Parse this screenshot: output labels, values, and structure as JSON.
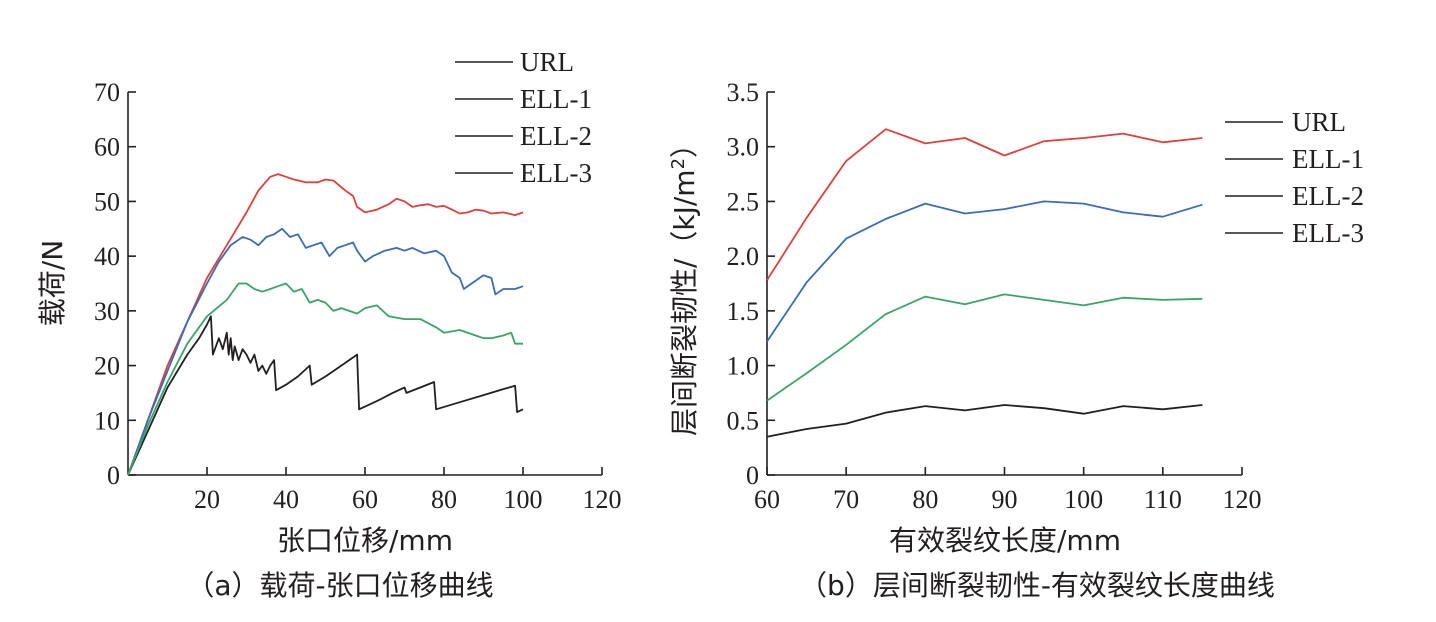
{
  "chart_data": [
    {
      "type": "line",
      "caption": "（a）载荷-张口位移曲线",
      "xlabel": "张口位移/mm",
      "ylabel": "载荷/N",
      "xlim": [
        0,
        120
      ],
      "ylim": [
        0,
        70
      ],
      "xticks": [
        20,
        40,
        60,
        80,
        100,
        120
      ],
      "xtick_labels": [
        "20",
        "40",
        "60",
        "80",
        "100",
        "120"
      ],
      "yticks": [
        0,
        10,
        20,
        30,
        40,
        50,
        60,
        70
      ],
      "ytick_labels": [
        "0",
        "10",
        "20",
        "30",
        "40",
        "50",
        "60",
        "70"
      ],
      "legend_position": "top-right",
      "series": [
        {
          "name": "URL",
          "color": "#231f20",
          "x": [
            0,
            5,
            10,
            15,
            18,
            20,
            21,
            21.5,
            23,
            24,
            25,
            25.5,
            26,
            26.5,
            27,
            28,
            29,
            30,
            31,
            32,
            33,
            34,
            35,
            36,
            37,
            37.5,
            40,
            43,
            46,
            46.5,
            50,
            54,
            58,
            58.5,
            63,
            67,
            70,
            70.5,
            74,
            77.5,
            78,
            84,
            90,
            95,
            98,
            98.5,
            100
          ],
          "y": [
            0,
            8,
            16,
            22,
            25,
            27.5,
            29,
            22,
            25,
            23,
            26,
            22,
            25,
            21,
            23.5,
            21,
            23,
            22,
            20.5,
            22,
            19,
            20,
            18.5,
            20,
            21,
            15.5,
            16.5,
            18,
            20,
            16.5,
            18,
            20,
            22,
            12,
            13.5,
            15,
            16,
            15,
            16,
            17,
            12,
            13.3,
            14.6,
            15.7,
            16.3,
            11.5,
            12
          ]
        },
        {
          "name": "ELL-1",
          "color": "#d9423e",
          "x": [
            0,
            5,
            10,
            15,
            20,
            25,
            30,
            33,
            36,
            38,
            40,
            42,
            45,
            48,
            50,
            52,
            55,
            57,
            58,
            60,
            63,
            66,
            68,
            70,
            72,
            74,
            76,
            78,
            80,
            82,
            84,
            86,
            88,
            90,
            92,
            95,
            98,
            100
          ],
          "y": [
            0,
            10,
            20,
            28,
            36,
            42,
            48,
            52,
            54.5,
            55,
            54.5,
            54,
            53.5,
            53.5,
            54,
            53.8,
            52,
            51,
            49,
            48,
            48.5,
            49.5,
            50.5,
            50,
            49,
            49.3,
            49.5,
            49,
            49.2,
            48.5,
            47.8,
            48,
            48.5,
            48.3,
            47.8,
            48,
            47.5,
            48
          ]
        },
        {
          "name": "ELL-2",
          "color": "#3a6db3",
          "x": [
            0,
            5,
            10,
            15,
            20,
            23,
            26,
            29,
            31,
            33,
            35,
            37,
            39,
            41,
            43,
            45,
            47,
            49,
            51,
            53,
            55,
            57,
            58,
            60,
            62,
            65,
            68,
            70,
            72,
            75,
            78,
            80,
            82,
            84,
            85,
            87,
            90,
            92,
            93,
            95,
            98,
            100
          ],
          "y": [
            0,
            10,
            19,
            28,
            35,
            39,
            42,
            43.5,
            43,
            42,
            43.5,
            44,
            45,
            43.5,
            44,
            41.5,
            42,
            42.5,
            40,
            41.5,
            42,
            42.5,
            41,
            39,
            40,
            41,
            41.5,
            41,
            41.5,
            40.5,
            41,
            40,
            37,
            36,
            34,
            35,
            36.5,
            36,
            33,
            34,
            34,
            34.5
          ]
        },
        {
          "name": "ELL-3",
          "color": "#3aa466",
          "x": [
            0,
            5,
            10,
            15,
            20,
            25,
            28,
            30,
            32,
            34,
            36,
            38,
            40,
            42,
            44,
            46,
            48,
            50,
            52,
            54,
            56,
            58,
            60,
            63,
            66,
            70,
            74,
            78,
            80,
            84,
            88,
            90,
            92,
            95,
            97,
            98,
            100
          ],
          "y": [
            0,
            9,
            17,
            24,
            29,
            32,
            35,
            35,
            34,
            33.5,
            34,
            34.5,
            35,
            33.5,
            34,
            31.5,
            32,
            31.5,
            30,
            30.5,
            30,
            29.5,
            30.5,
            31,
            29,
            28.5,
            28.5,
            27,
            26,
            26.5,
            25.5,
            25,
            25,
            25.5,
            26,
            24,
            24
          ]
        }
      ]
    },
    {
      "type": "line",
      "caption": "（b）层间断裂韧性-有效裂纹长度曲线",
      "xlabel": "有效裂纹长度/mm",
      "ylabel_main": "层间断裂韧性/（kJ/m",
      "ylabel_sup": "2",
      "ylabel_end": "）",
      "xlim": [
        60,
        120
      ],
      "ylim": [
        0,
        3.5
      ],
      "xticks": [
        60,
        70,
        80,
        90,
        100,
        110,
        120
      ],
      "xtick_labels": [
        "60",
        "70",
        "80",
        "90",
        "100",
        "110",
        "120"
      ],
      "yticks": [
        0,
        0.5,
        1.0,
        1.5,
        2.0,
        2.5,
        3.0,
        3.5
      ],
      "ytick_labels": [
        "0",
        "0.5",
        "1.0",
        "1.5",
        "2.0",
        "2.5",
        "3.0",
        "3.5"
      ],
      "legend_position": "right",
      "series": [
        {
          "name": "URL",
          "color": "#231f20",
          "x": [
            60,
            65,
            70,
            75,
            80,
            85,
            90,
            95,
            100,
            105,
            110,
            115
          ],
          "y": [
            0.35,
            0.42,
            0.47,
            0.57,
            0.63,
            0.59,
            0.64,
            0.61,
            0.56,
            0.63,
            0.6,
            0.64
          ]
        },
        {
          "name": "ELL-1",
          "color": "#d9423e",
          "x": [
            60,
            65,
            70,
            75,
            80,
            85,
            90,
            95,
            100,
            105,
            110,
            115
          ],
          "y": [
            1.78,
            2.35,
            2.87,
            3.16,
            3.03,
            3.08,
            2.92,
            3.05,
            3.08,
            3.12,
            3.04,
            3.08
          ]
        },
        {
          "name": "ELL-2",
          "color": "#3a6db3",
          "x": [
            60,
            65,
            70,
            75,
            80,
            85,
            90,
            95,
            100,
            105,
            110,
            115
          ],
          "y": [
            1.22,
            1.76,
            2.16,
            2.34,
            2.48,
            2.39,
            2.43,
            2.5,
            2.48,
            2.4,
            2.36,
            2.47
          ]
        },
        {
          "name": "ELL-3",
          "color": "#3aa466",
          "x": [
            60,
            65,
            70,
            75,
            80,
            85,
            90,
            95,
            100,
            105,
            110,
            115
          ],
          "y": [
            0.68,
            0.93,
            1.19,
            1.47,
            1.63,
            1.56,
            1.65,
            1.6,
            1.55,
            1.62,
            1.6,
            1.61
          ]
        }
      ]
    }
  ]
}
